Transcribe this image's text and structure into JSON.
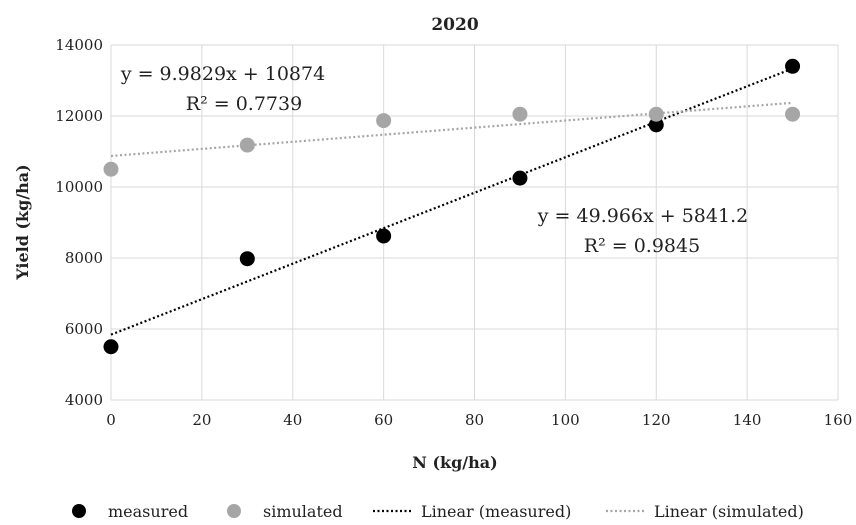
{
  "chart_data": {
    "type": "scatter",
    "title": "2020",
    "xlabel": "N (kg/ha)",
    "ylabel": "Yield (kg/ha)",
    "xlim": [
      0,
      160
    ],
    "ylim": [
      4000,
      14000
    ],
    "x_ticks": [
      0,
      20,
      40,
      60,
      80,
      100,
      120,
      140,
      160
    ],
    "y_ticks": [
      4000,
      6000,
      8000,
      10000,
      12000,
      14000
    ],
    "grid": true,
    "legend_position": "bottom",
    "series": [
      {
        "name": "measured",
        "color": "#000000",
        "points": [
          {
            "x": 0,
            "y": 5500
          },
          {
            "x": 30,
            "y": 7980
          },
          {
            "x": 60,
            "y": 8620
          },
          {
            "x": 90,
            "y": 10250
          },
          {
            "x": 120,
            "y": 11750
          },
          {
            "x": 150,
            "y": 13400
          }
        ]
      },
      {
        "name": "simulated",
        "color": "#a6a6a6",
        "points": [
          {
            "x": 0,
            "y": 10500
          },
          {
            "x": 30,
            "y": 11180
          },
          {
            "x": 60,
            "y": 11870
          },
          {
            "x": 90,
            "y": 12050
          },
          {
            "x": 120,
            "y": 12050
          },
          {
            "x": 150,
            "y": 12050
          }
        ]
      }
    ],
    "trendlines": [
      {
        "name": "Linear (measured)",
        "color": "#000000",
        "slope": 49.966,
        "intercept": 5841.2,
        "x_range": [
          0,
          150
        ],
        "equation": "y = 49.966x + 5841.2",
        "r2": "R² = 0.9845"
      },
      {
        "name": "Linear (simulated)",
        "color": "#a6a6a6",
        "slope": 9.9829,
        "intercept": 10874,
        "x_range": [
          0,
          150
        ],
        "equation": "y = 9.9829x + 10874",
        "r2": "R² = 0.7739"
      }
    ]
  }
}
